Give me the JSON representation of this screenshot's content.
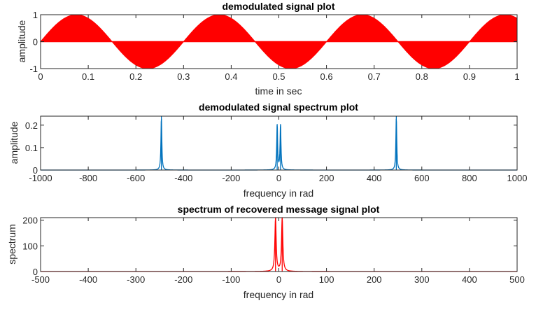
{
  "chart_data": [
    {
      "type": "line",
      "title": "demodulated signal plot",
      "xlabel": "time in sec",
      "ylabel": "amplitude",
      "xlim": [
        0,
        1
      ],
      "ylim": [
        -1,
        1
      ],
      "xticks": [
        "0",
        "0.1",
        "0.2",
        "0.3",
        "0.4",
        "0.5",
        "0.6",
        "0.7",
        "0.8",
        "0.9",
        "1"
      ],
      "yticks": [
        "-1",
        "0",
        "1"
      ],
      "series": [
        {
          "color": "#ff0000",
          "envelope_frequency_hz": 3.333,
          "carrier_frequency_hz": 250,
          "amplitude": 1,
          "fill": "envelope"
        }
      ],
      "grid": false
    },
    {
      "type": "line",
      "title": "demodulated signal spectrum plot",
      "xlabel": "frequency in rad",
      "ylabel": "amplitude",
      "xlim": [
        -1000,
        1000
      ],
      "ylim": [
        0,
        0.24
      ],
      "xticks": [
        "-1000",
        "-800",
        "-600",
        "-400",
        "-200",
        "0",
        "200",
        "400",
        "600",
        "800",
        "1000"
      ],
      "yticks": [
        "0",
        "0.1",
        "0.2"
      ],
      "series": [
        {
          "color": "#0072bd",
          "peaks": [
            {
              "x": -493,
              "y": 0.24
            },
            {
              "x": -7,
              "y": 0.205
            },
            {
              "x": 7,
              "y": 0.205
            },
            {
              "x": 493,
              "y": 0.24
            }
          ]
        }
      ],
      "grid": false
    },
    {
      "type": "line",
      "title": "spectrum of recovered message signal plot",
      "xlabel": "frequency in rad",
      "ylabel": "spectrum",
      "xlim": [
        -500,
        500
      ],
      "ylim": [
        0,
        210
      ],
      "xticks": [
        "-500",
        "-400",
        "-300",
        "-200",
        "-100",
        "0",
        "100",
        "200",
        "300",
        "400",
        "500"
      ],
      "yticks": [
        "0",
        "100",
        "200"
      ],
      "series": [
        {
          "color": "#ff0000",
          "peaks": [
            {
              "x": -7,
              "y": 210
            },
            {
              "x": 7,
              "y": 210
            }
          ]
        }
      ],
      "grid": false
    }
  ]
}
